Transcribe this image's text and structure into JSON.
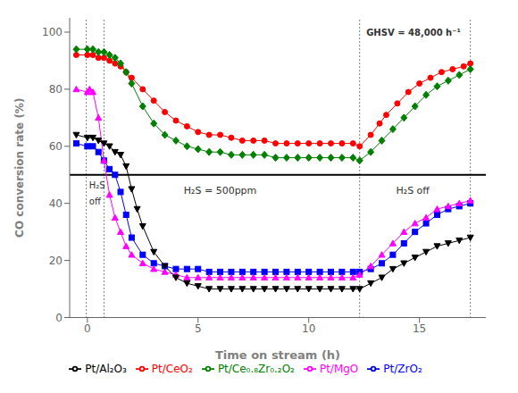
{
  "chart_data": {
    "type": "line",
    "xlabel": "Time on stream (h)",
    "ylabel": "CO conversion rate (%)",
    "xlim": [
      -0.8,
      18.0
    ],
    "ylim": [
      0,
      105
    ],
    "xticks": [
      0,
      5,
      10,
      15
    ],
    "yticks": [
      0,
      20,
      40,
      60,
      80,
      100
    ],
    "grid": false,
    "legend": "bottom",
    "hlines": [
      50
    ],
    "vlines": [
      -0.05,
      0.75,
      12.3,
      17.3
    ],
    "annotations": [
      {
        "text": "H₂S = 500ppm",
        "x": 6.0,
        "y": 46
      },
      {
        "text": "H₂S off",
        "x": 14.7,
        "y": 46
      },
      {
        "text": "H₂S",
        "x": 0.08,
        "y": 47.5
      },
      {
        "text": "off",
        "x": 0.08,
        "y": 42.0
      },
      {
        "text": "GHSV = 48,000 h⁻¹",
        "x": 12.6,
        "y": 101
      }
    ],
    "series": [
      {
        "name": "Pt/CeO₂",
        "color": "#ff0000",
        "marker": "circle",
        "x": [
          -0.5,
          0.0,
          0.25,
          0.5,
          0.75,
          1.0,
          1.25,
          1.5,
          1.75,
          2.0,
          2.5,
          3.0,
          3.5,
          4.0,
          4.5,
          5.0,
          5.5,
          6.0,
          6.5,
          7.0,
          7.5,
          8.0,
          8.5,
          9.0,
          9.5,
          10.0,
          10.5,
          11.0,
          11.5,
          12.0,
          12.3,
          12.8,
          13.2,
          13.5,
          14.0,
          14.5,
          15.0,
          15.5,
          16.0,
          16.5,
          17.0,
          17.3
        ],
        "values": [
          92,
          92,
          92,
          91,
          91,
          90,
          89,
          88,
          86,
          84,
          80,
          76,
          72,
          69,
          67,
          65,
          64,
          64,
          63,
          62,
          62,
          62,
          61,
          61,
          61,
          61,
          61,
          61,
          61,
          61,
          60,
          64,
          68,
          71,
          75,
          79,
          82,
          84,
          86,
          87,
          88,
          89
        ]
      },
      {
        "name": "Pt/Ce₀.₈Zr₀.₂O₂",
        "color": "#008000",
        "marker": "diamond",
        "x": [
          -0.5,
          0.0,
          0.25,
          0.5,
          0.75,
          1.0,
          1.25,
          1.5,
          1.75,
          2.0,
          2.5,
          3.0,
          3.5,
          4.0,
          4.5,
          5.0,
          5.5,
          6.0,
          6.5,
          7.0,
          7.5,
          8.0,
          8.5,
          9.0,
          9.5,
          10.0,
          10.5,
          11.0,
          11.5,
          12.0,
          12.3,
          12.8,
          13.3,
          13.8,
          14.3,
          14.8,
          15.3,
          15.8,
          16.3,
          16.8,
          17.3
        ],
        "values": [
          94,
          94,
          94,
          93,
          93,
          92,
          91,
          89,
          86,
          82,
          74,
          68,
          64,
          62,
          60,
          59,
          58,
          58,
          57,
          57,
          57,
          57,
          56,
          56,
          56,
          56,
          56,
          56,
          56,
          56,
          55,
          58,
          62,
          66,
          70,
          74,
          78,
          81,
          83,
          85,
          87
        ]
      },
      {
        "name": "Pt/ZrO₂",
        "color": "#0000ff",
        "marker": "square",
        "x": [
          -0.5,
          0.0,
          0.25,
          0.5,
          0.75,
          1.0,
          1.25,
          1.5,
          1.75,
          2.0,
          2.5,
          3.0,
          3.5,
          4.0,
          4.5,
          5.0,
          5.5,
          6.0,
          6.5,
          7.0,
          7.5,
          8.0,
          8.5,
          9.0,
          9.5,
          10.0,
          10.5,
          11.0,
          11.5,
          12.0,
          12.3,
          12.8,
          13.3,
          13.8,
          14.3,
          14.8,
          15.3,
          15.8,
          16.3,
          16.8,
          17.3
        ],
        "values": [
          61,
          60,
          60,
          58,
          55,
          52,
          50,
          44,
          36,
          28,
          22,
          19,
          18,
          17,
          17,
          17,
          16,
          16,
          16,
          16,
          16,
          16,
          16,
          16,
          16,
          16,
          16,
          16,
          16,
          16,
          16,
          17,
          19,
          22,
          26,
          30,
          33,
          36,
          38,
          39,
          40
        ]
      },
      {
        "name": "Pt/MgO",
        "color": "#ff00ff",
        "marker": "triangle",
        "x": [
          -0.5,
          0.0,
          0.1,
          0.25,
          0.5,
          0.75,
          1.0,
          1.25,
          1.5,
          1.75,
          2.0,
          2.5,
          3.0,
          3.5,
          4.0,
          4.5,
          5.0,
          5.5,
          6.0,
          6.5,
          7.0,
          7.5,
          8.0,
          8.5,
          9.0,
          9.5,
          10.0,
          10.5,
          11.0,
          11.5,
          12.0,
          12.3,
          12.8,
          13.3,
          13.8,
          14.3,
          14.8,
          15.3,
          15.8,
          16.3,
          16.8,
          17.3
        ],
        "values": [
          80,
          79,
          80,
          79,
          70,
          55,
          43,
          35,
          30,
          25,
          22,
          19,
          17,
          16,
          15,
          14,
          14,
          14,
          14,
          14,
          14,
          14,
          14,
          14,
          14,
          14,
          14,
          14,
          14,
          14,
          14,
          15,
          18,
          22,
          26,
          30,
          33,
          35,
          38,
          39,
          40,
          41
        ]
      },
      {
        "name": "Pt/Al₂O₃",
        "color": "#000000",
        "marker": "triangle-down",
        "x": [
          -0.5,
          0.0,
          0.25,
          0.5,
          0.75,
          1.0,
          1.25,
          1.5,
          1.75,
          2.0,
          2.25,
          2.5,
          3.0,
          3.5,
          4.0,
          4.5,
          5.0,
          5.5,
          6.0,
          6.5,
          7.0,
          7.5,
          8.0,
          8.5,
          9.0,
          9.5,
          10.0,
          10.5,
          11.0,
          11.5,
          12.0,
          12.3,
          12.8,
          13.3,
          13.8,
          14.3,
          14.8,
          15.3,
          15.8,
          16.3,
          16.8,
          17.3
        ],
        "values": [
          64,
          63,
          63,
          62,
          61,
          60,
          58,
          57,
          53,
          45,
          38,
          32,
          23,
          18,
          14,
          12,
          11,
          10,
          10,
          10,
          10,
          10,
          10,
          10,
          10,
          10,
          10,
          10,
          10,
          10,
          10,
          10,
          12,
          14,
          17,
          19,
          21,
          23,
          25,
          26,
          27,
          28
        ]
      }
    ]
  }
}
